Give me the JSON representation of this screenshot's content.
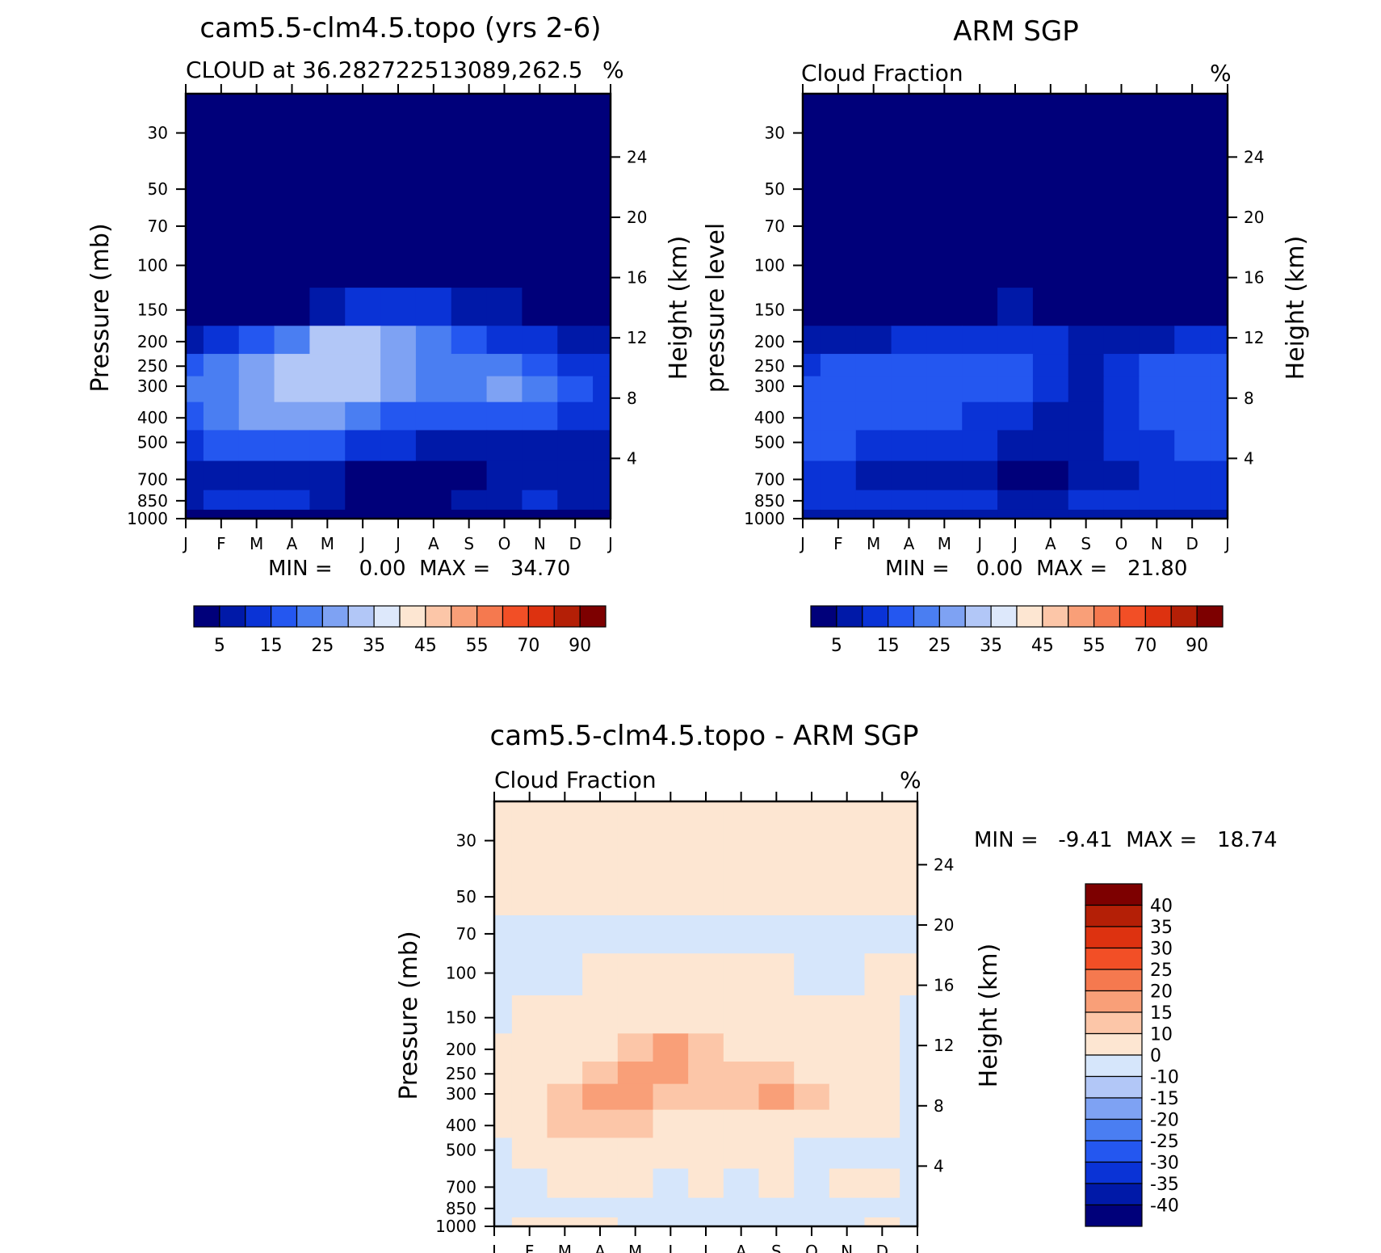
{
  "panels": [
    {
      "id": "model",
      "title": "cam5.5-clm4.5.topo (yrs 2-6)",
      "subtitle": "CLOUD at 36.282722513089,262.5",
      "unit": "%",
      "ylabel": "Pressure (mb)",
      "ylabel_right": "Height (km)",
      "stats": "MIN =    0.00  MAX =   34.70"
    },
    {
      "id": "obs",
      "title": "ARM SGP",
      "subtitle": "Cloud Fraction",
      "unit": "%",
      "ylabel": "pressure level",
      "ylabel_right": "Height (km)",
      "stats": "MIN =    0.00  MAX =   21.80"
    },
    {
      "id": "diff",
      "title": "cam5.5-clm4.5.topo - ARM SGP",
      "subtitle": "Cloud Fraction",
      "unit": "%",
      "ylabel": "Pressure (mb)",
      "ylabel_right": "Height (km)",
      "stats": "MIN =   -9.41  MAX =   18.74"
    }
  ],
  "chart_data": [
    {
      "type": "heatmap",
      "title": "cam5.5-clm4.5.topo (yrs 2-6)",
      "subtitle": "CLOUD at 36.282722513089,262.5",
      "x": [
        "J",
        "F",
        "M",
        "A",
        "M",
        "J",
        "J",
        "A",
        "S",
        "O",
        "N",
        "D",
        "J"
      ],
      "y_pressure_mb": [
        30,
        50,
        70,
        100,
        150,
        200,
        250,
        300,
        400,
        500,
        700,
        850,
        1000
      ],
      "y_height_km": [
        4,
        8,
        12,
        16,
        20,
        24
      ],
      "values_estimated_percent": [
        [
          0,
          0,
          0,
          0,
          0,
          0,
          0,
          0,
          0,
          0,
          0,
          0,
          0
        ],
        [
          0,
          0,
          0,
          0,
          0,
          0,
          0,
          0,
          0,
          0,
          0,
          0,
          0
        ],
        [
          0,
          0,
          0,
          0,
          0,
          0,
          0,
          0,
          0,
          0,
          0,
          0,
          0
        ],
        [
          0,
          0,
          0,
          0,
          0,
          0,
          0,
          0,
          0,
          0,
          0,
          0,
          0
        ],
        [
          0,
          1,
          2,
          4,
          8,
          12,
          13,
          11,
          8,
          5,
          3,
          2,
          1
        ],
        [
          8,
          12,
          18,
          24,
          30,
          32,
          26,
          20,
          17,
          14,
          11,
          8,
          6
        ],
        [
          16,
          20,
          26,
          31,
          34,
          33,
          28,
          24,
          23,
          21,
          18,
          14,
          12
        ],
        [
          20,
          24,
          28,
          31,
          31,
          30,
          27,
          24,
          23,
          25,
          23,
          18,
          14
        ],
        [
          19,
          24,
          26,
          27,
          26,
          23,
          18,
          15,
          15,
          16,
          15,
          12,
          11
        ],
        [
          13,
          16,
          17,
          18,
          17,
          13,
          10,
          9,
          9,
          9,
          9,
          8,
          8
        ],
        [
          8,
          9,
          8,
          8,
          7,
          4,
          3,
          3,
          4,
          6,
          6,
          6,
          6
        ],
        [
          9,
          11,
          11,
          10,
          8,
          3,
          3,
          3,
          5,
          9,
          11,
          9,
          9
        ],
        [
          0,
          0,
          0,
          0,
          0,
          0,
          0,
          0,
          0,
          0,
          0,
          0,
          0
        ]
      ],
      "min": 0.0,
      "max": 34.7,
      "colorbar_ticks": [
        "5",
        "15",
        "25",
        "35",
        "45",
        "55",
        "70",
        "90"
      ]
    },
    {
      "type": "heatmap",
      "title": "ARM SGP",
      "subtitle": "Cloud Fraction",
      "x": [
        "J",
        "F",
        "M",
        "A",
        "M",
        "J",
        "J",
        "A",
        "S",
        "O",
        "N",
        "D",
        "J"
      ],
      "y_pressure_mb": [
        30,
        50,
        70,
        100,
        150,
        200,
        250,
        300,
        400,
        500,
        700,
        850,
        1000
      ],
      "y_height_km": [
        4,
        8,
        12,
        16,
        20,
        24
      ],
      "values_estimated_percent": [
        [
          0,
          0,
          0,
          0,
          0,
          0,
          0,
          0,
          0,
          0,
          0,
          0,
          0
        ],
        [
          0,
          0,
          0,
          0,
          0,
          0,
          0,
          0,
          0,
          0,
          0,
          0,
          0
        ],
        [
          0,
          0,
          0,
          0,
          0,
          0,
          0,
          0,
          0,
          0,
          0,
          0,
          0
        ],
        [
          0,
          0,
          0,
          0,
          0,
          0,
          0,
          0,
          0,
          0,
          0,
          0,
          0
        ],
        [
          1,
          1,
          1,
          2,
          3,
          4,
          5,
          4,
          3,
          3,
          2,
          2,
          2
        ],
        [
          7,
          8,
          9,
          10,
          11,
          12,
          12,
          12,
          8,
          8,
          9,
          10,
          10
        ],
        [
          14,
          15,
          15,
          16,
          16,
          17,
          17,
          14,
          9,
          13,
          15,
          15,
          15
        ],
        [
          18,
          16,
          15,
          15,
          16,
          16,
          16,
          10,
          7,
          14,
          16,
          16,
          17
        ],
        [
          19,
          17,
          16,
          15,
          15,
          13,
          11,
          8,
          7,
          13,
          16,
          16,
          18
        ],
        [
          16,
          15,
          14,
          13,
          12,
          10,
          9,
          8,
          9,
          13,
          14,
          15,
          16
        ],
        [
          13,
          12,
          9,
          7,
          6,
          6,
          3,
          4,
          8,
          9,
          10,
          11,
          12
        ],
        [
          10,
          12,
          14,
          12,
          11,
          10,
          9,
          9,
          10,
          12,
          14,
          12,
          11
        ],
        [
          5,
          5,
          5,
          5,
          5,
          5,
          5,
          5,
          5,
          5,
          5,
          5,
          5
        ]
      ],
      "min": 0.0,
      "max": 21.8,
      "colorbar_ticks": [
        "5",
        "15",
        "25",
        "35",
        "45",
        "55",
        "70",
        "90"
      ]
    },
    {
      "type": "heatmap",
      "title": "cam5.5-clm4.5.topo - ARM SGP",
      "subtitle": "Cloud Fraction",
      "x": [
        "J",
        "F",
        "M",
        "A",
        "M",
        "J",
        "J",
        "A",
        "S",
        "O",
        "N",
        "D",
        "J"
      ],
      "y_pressure_mb": [
        30,
        50,
        70,
        100,
        150,
        200,
        250,
        300,
        400,
        500,
        700,
        850,
        1000
      ],
      "y_height_km": [
        4,
        8,
        12,
        16,
        20,
        24
      ],
      "values_estimated_percent": [
        [
          1,
          1,
          1,
          1,
          1,
          1,
          1,
          1,
          1,
          1,
          1,
          1,
          1
        ],
        [
          1,
          1,
          1,
          1,
          1,
          1,
          1,
          1,
          1,
          1,
          1,
          1,
          1
        ],
        [
          -1,
          -1,
          -1,
          -1,
          -1,
          -1,
          -1,
          -1,
          -1,
          -1,
          -1,
          -1,
          -1
        ],
        [
          -1,
          -1,
          -1,
          1,
          1,
          1,
          1,
          1,
          1,
          -1,
          -1,
          1,
          1
        ],
        [
          -1,
          1,
          1,
          2,
          3,
          5,
          7,
          6,
          4,
          2,
          1,
          1,
          -1
        ],
        [
          1,
          2,
          6,
          9,
          13,
          16,
          14,
          9,
          9,
          6,
          3,
          2,
          -1
        ],
        [
          2,
          5,
          9,
          13,
          17,
          18,
          14,
          10,
          13,
          8,
          3,
          2,
          -1
        ],
        [
          2,
          7,
          12,
          15,
          15,
          14,
          11,
          12,
          16,
          10,
          3,
          2,
          -1
        ],
        [
          1,
          6,
          10,
          12,
          11,
          9,
          7,
          7,
          8,
          5,
          1,
          1,
          -1
        ],
        [
          -1,
          1,
          3,
          4,
          5,
          3,
          1,
          1,
          1,
          -1,
          -1,
          -1,
          -1
        ],
        [
          -1,
          -1,
          1,
          1,
          1,
          -1,
          1,
          -1,
          1,
          -1,
          1,
          1,
          -1
        ],
        [
          -1,
          -1,
          -1,
          -1,
          -1,
          -1,
          -1,
          -1,
          -1,
          -1,
          -1,
          -1,
          -1
        ],
        [
          -1,
          1,
          1,
          1,
          -1,
          -1,
          -1,
          -1,
          -1,
          -1,
          -1,
          1,
          -1
        ]
      ],
      "min": -9.41,
      "max": 18.74,
      "colorbar_ticks": [
        "40",
        "35",
        "30",
        "25",
        "20",
        "15",
        "10",
        "0",
        "-10",
        "-15",
        "-20",
        "-25",
        "-30",
        "-35",
        "-40"
      ]
    }
  ],
  "colors": {
    "seq": [
      "#00007a",
      "#0019a8",
      "#0a33d6",
      "#2457f0",
      "#4a7ef2",
      "#7ea2f3",
      "#b2c7f7",
      "#dde8fb",
      "#fde6d2",
      "#fcc6a8",
      "#f99f78",
      "#f5794f",
      "#f24f26",
      "#dd3210",
      "#b41f06",
      "#7d0000"
    ],
    "div": [
      "#00007a",
      "#0019a8",
      "#0a33d6",
      "#2457f0",
      "#4a7ef2",
      "#7ea2f3",
      "#b2c7f7",
      "#d6e6fb",
      "#fde6d2",
      "#fcc6a8",
      "#f99f78",
      "#f5794f",
      "#f24f26",
      "#dd3210",
      "#b41f06",
      "#7d0000"
    ]
  }
}
